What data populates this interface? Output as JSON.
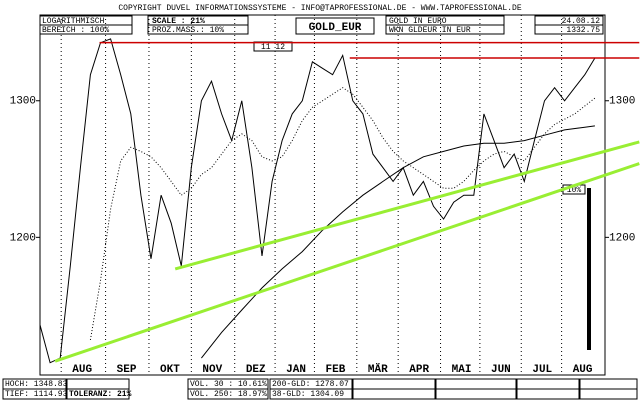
{
  "header": {
    "copyright": "COPYRIGHT DUVEL INFORMATIONSSYSTEME - INFO@TAPROFESSIONAL.DE - WWW.TAPROFESSIONAL.DE",
    "scale_type": "LOGARITHMISCH",
    "range": "BEREICH : 100%",
    "scale": "SCALE : 21%",
    "percent": "PROZ.MASS.: 10%",
    "symbol": "GOLD_EUR",
    "name": "GOLD IN EURO",
    "wkn": "WKN GLDEUR  IN EUR",
    "date": "24.08.12",
    "last": "1332.75",
    "marker": "11 12",
    "percent_box": "10%"
  },
  "footer": {
    "high": "HOCH: 1348.83",
    "low": "TIEF: 1114.93",
    "tolerance": "TOLERANZ: 21%",
    "vol30": "VOL. 30 : 10.61%",
    "vol250": "VOL. 250: 18.97%",
    "gld200": "200-GLD: 1278.07",
    "gld38": "38-GLD: 1304.09"
  },
  "chart_data": {
    "type": "line",
    "log_scale": true,
    "xlim": [
      0,
      56
    ],
    "ylim": [
      1107,
      1367
    ],
    "yticks": [
      1200,
      1300
    ],
    "xticks": [
      {
        "value": 2.1,
        "label": "AUG"
      },
      {
        "value": 6.5,
        "label": "SEP"
      },
      {
        "value": 10.8,
        "label": "OKT"
      },
      {
        "value": 15.0,
        "label": "NOV"
      },
      {
        "value": 19.3,
        "label": "DEZ"
      },
      {
        "value": 23.3,
        "label": "JAN"
      },
      {
        "value": 27.2,
        "label": "FEB"
      },
      {
        "value": 31.4,
        "label": "MÄR"
      },
      {
        "value": 35.5,
        "label": "APR"
      },
      {
        "value": 39.7,
        "label": "MAI"
      },
      {
        "value": 43.6,
        "label": "JUN"
      },
      {
        "value": 47.7,
        "label": "JUL"
      },
      {
        "value": 51.7,
        "label": "AUG"
      }
    ],
    "grid": true,
    "series": [
      {
        "color": "#000000",
        "style": "solid",
        "x": [
          0,
          1,
          2,
          3,
          4,
          5,
          6,
          7,
          8,
          9,
          10,
          11,
          12,
          13,
          14,
          15,
          16,
          17,
          18,
          19,
          20,
          21,
          22,
          23,
          24,
          25,
          26,
          27,
          28,
          29,
          30,
          31,
          32,
          33,
          34,
          35,
          36,
          37,
          38,
          39,
          40,
          41,
          42,
          43,
          44,
          45,
          46,
          47,
          48,
          49,
          50,
          51,
          52,
          53,
          54,
          55
        ],
        "values": [
          1140,
          1115,
          1118,
          1180,
          1250,
          1320,
          1345,
          1348,
          1320,
          1290,
          1230,
          1185,
          1230,
          1210,
          1180,
          1250,
          1300,
          1315,
          1290,
          1270,
          1300,
          1250,
          1187,
          1240,
          1270,
          1290,
          1300,
          1330,
          1325,
          1320,
          1335,
          1300,
          1290,
          1260,
          1250,
          1240,
          1250,
          1230,
          1240,
          1222,
          1213,
          1225,
          1230,
          1230,
          1290,
          1270,
          1250,
          1260,
          1240,
          1270,
          1300,
          1310,
          1300,
          1310,
          1320,
          1333
        ]
      },
      {
        "color": "#000000",
        "style": "dotted",
        "x": [
          5,
          6,
          7,
          8,
          9,
          10,
          11,
          12,
          13,
          14,
          15,
          16,
          17,
          18,
          19,
          20,
          21,
          22,
          23,
          24,
          25,
          26,
          27,
          28,
          29,
          30,
          31,
          32,
          33,
          34,
          35,
          36,
          37,
          38,
          39,
          40,
          41,
          42,
          43,
          44,
          45,
          46,
          47,
          48,
          49,
          50,
          51,
          52,
          53,
          54,
          55
        ],
        "values": [
          1130,
          1170,
          1220,
          1255,
          1265,
          1262,
          1258,
          1250,
          1240,
          1230,
          1235,
          1245,
          1250,
          1260,
          1270,
          1275,
          1270,
          1258,
          1255,
          1258,
          1270,
          1285,
          1295,
          1300,
          1305,
          1310,
          1305,
          1295,
          1285,
          1272,
          1262,
          1255,
          1250,
          1245,
          1240,
          1235,
          1235,
          1240,
          1248,
          1255,
          1260,
          1262,
          1258,
          1255,
          1265,
          1275,
          1282,
          1286,
          1290,
          1296,
          1302
        ]
      },
      {
        "color": "#000000",
        "style": "solid",
        "x": [
          16,
          18,
          20,
          22,
          24,
          26,
          28,
          30,
          32,
          34,
          36,
          38,
          40,
          42,
          44,
          46,
          48,
          50,
          52,
          54,
          55
        ],
        "values": [
          1118,
          1135,
          1150,
          1165,
          1178,
          1190,
          1205,
          1218,
          1230,
          1240,
          1250,
          1258,
          1262,
          1266,
          1268,
          1268,
          1270,
          1274,
          1278,
          1280,
          1281
        ]
      }
    ],
    "lines": [
      {
        "color": "#99ee33",
        "x": [
          13.4,
          59.4
        ],
        "values": [
          1178,
          1269
        ]
      },
      {
        "color": "#99ee33",
        "x": [
          1.5,
          59.4
        ],
        "values": [
          1116,
          1253
        ]
      },
      {
        "color": "#cc0000",
        "x": [
          5.9,
          59.4
        ],
        "values": [
          1345,
          1345
        ]
      },
      {
        "color": "#cc0000",
        "x": [
          30.7,
          59.4
        ],
        "values": [
          1333,
          1333
        ]
      }
    ]
  }
}
